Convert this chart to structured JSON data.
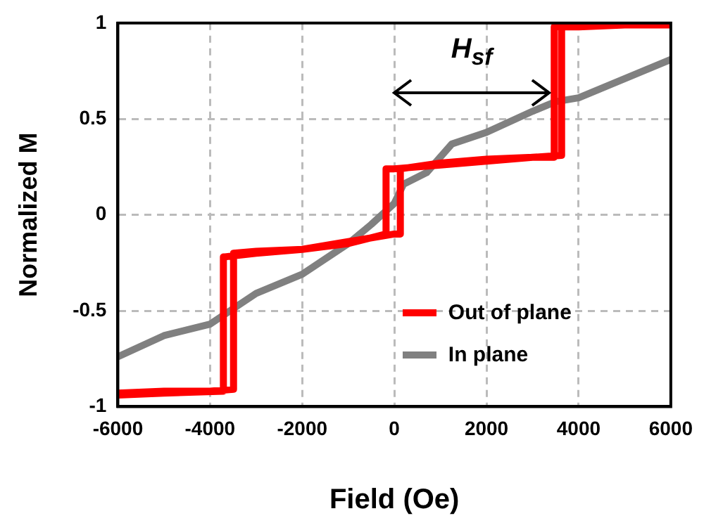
{
  "chart_data": {
    "type": "line",
    "xlabel": "Field (Oe)",
    "ylabel": "Normalized M",
    "xlim": [
      -6000,
      6000
    ],
    "xticks": [
      -6000,
      -4000,
      -2000,
      0,
      2000,
      4000,
      6000
    ],
    "ylim": [
      -1,
      1
    ],
    "yticks": [
      -1,
      -0.5,
      0,
      0.5,
      1
    ],
    "grid": true,
    "legend": "bottom right",
    "marker": "none",
    "line_style": "solid",
    "annotations": [
      "H$_{sf}$"
    ],
    "series": [
      {
        "name": "Out of plane",
        "color": "#ff0000",
        "x": [
          -6000,
          -5000,
          -4000,
          -3490,
          -3490,
          -3000,
          -2000,
          -1000,
          0,
          130,
          130,
          1000,
          2000,
          3000,
          3630,
          3630,
          4000,
          5000,
          6000,
          4000,
          3470,
          3470,
          3000,
          2000,
          1000,
          0,
          -180,
          -180,
          -1000,
          -2000,
          -3000,
          -3710,
          -3710,
          -5000,
          -6000
        ],
        "values": [
          -0.93,
          -0.92,
          -0.92,
          -0.91,
          -0.2,
          -0.19,
          -0.18,
          -0.14,
          -0.1,
          -0.1,
          0.24,
          0.27,
          0.29,
          0.3,
          0.31,
          0.98,
          0.98,
          0.99,
          0.99,
          0.99,
          0.98,
          0.3,
          0.3,
          0.28,
          0.26,
          0.24,
          0.24,
          -0.1,
          -0.15,
          -0.18,
          -0.2,
          -0.22,
          -0.92,
          -0.93,
          -0.94
        ]
      },
      {
        "name": "In plane",
        "color": "#808080",
        "x": [
          -6000,
          -5000,
          -4000,
          -3000,
          -2000,
          -1000,
          -500,
          0,
          200,
          700,
          1250,
          2000,
          3000,
          3500,
          4000,
          5000,
          6000
        ],
        "values": [
          -0.74,
          -0.63,
          -0.57,
          -0.41,
          -0.31,
          -0.15,
          -0.05,
          0.06,
          0.16,
          0.22,
          0.37,
          0.43,
          0.54,
          0.59,
          0.61,
          0.71,
          0.81
        ]
      }
    ]
  }
}
